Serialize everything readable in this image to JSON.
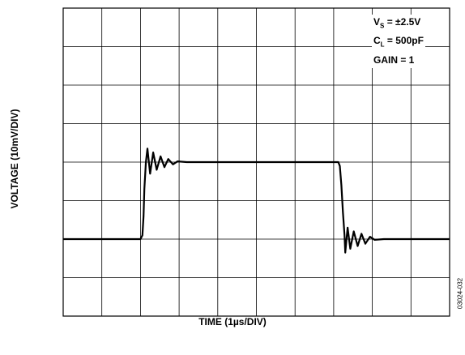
{
  "chart_data": {
    "type": "line",
    "title": "",
    "xlabel": "TIME (1µs/DIV)",
    "ylabel": "VOLTAGE (10mV/DIV)",
    "xlim": [
      0,
      10
    ],
    "ylim": [
      0,
      8
    ],
    "grid": true,
    "legend": "none",
    "divisions": {
      "x": 10,
      "y": 8
    },
    "annotations": {
      "line1": {
        "prefix": "V",
        "sub": "S",
        "suffix": " = ±2.5V"
      },
      "line2": {
        "prefix": "C",
        "sub": "L",
        "suffix": " = 500pF"
      },
      "line3": {
        "prefix": "GAIN = 1",
        "sub": "",
        "suffix": ""
      }
    },
    "series": [
      {
        "color": "#000000",
        "x": [
          0,
          2.0,
          2.05,
          2.08,
          2.1,
          2.14,
          2.18,
          2.25,
          2.33,
          2.42,
          2.52,
          2.62,
          2.72,
          2.84,
          2.96,
          3.2,
          7.0,
          7.12,
          7.16,
          7.2,
          7.24,
          7.28,
          7.3,
          7.36,
          7.43,
          7.52,
          7.62,
          7.72,
          7.82,
          7.94,
          8.06,
          8.3,
          10
        ],
        "y": [
          2,
          2,
          2.1,
          2.6,
          3.3,
          4,
          4.35,
          3.7,
          4.25,
          3.8,
          4.15,
          3.87,
          4.08,
          3.94,
          4.02,
          4,
          4,
          4,
          3.9,
          3.4,
          2.7,
          2.1,
          1.65,
          2.3,
          1.75,
          2.2,
          1.82,
          2.14,
          1.88,
          2.06,
          1.98,
          2,
          2
        ]
      }
    ]
  },
  "fig_id": "03024-032"
}
